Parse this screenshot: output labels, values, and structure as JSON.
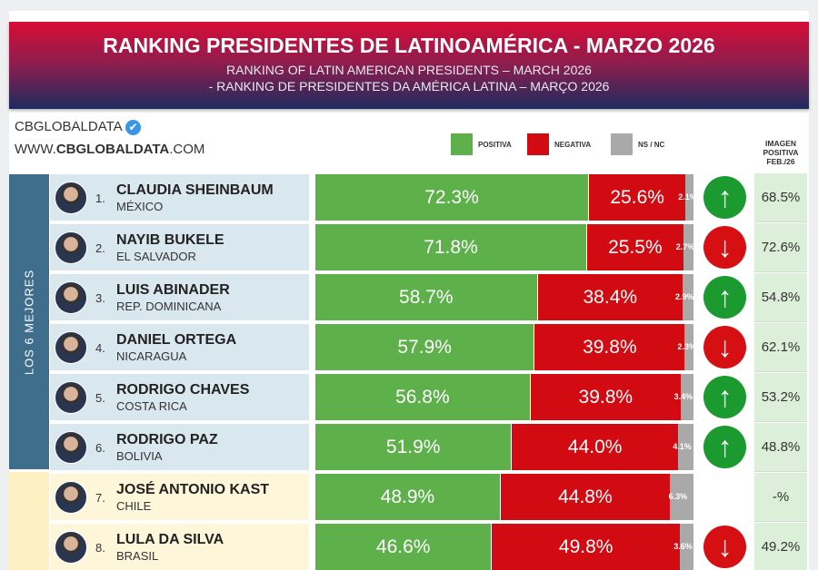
{
  "header": {
    "title": "RANKING PRESIDENTES DE LATINOAMÉRICA - MARZO 2026",
    "subtitle_en": "RANKING OF LATIN AMERICAN PRESIDENTS – MARCH 2026",
    "subtitle_pt": "- RANKING DE PRESIDENTES DA AMÉRICA LATINA – MARÇO 2026"
  },
  "brand": {
    "name": "CBGLOBALDATA",
    "verified_icon": "✔",
    "site_prefix": "WWW.",
    "site_bold": "CBGLOBALDATA",
    "site_suffix": ".COM"
  },
  "legend": {
    "positive": "POSITIVA",
    "negative": "NEGATIVA",
    "nsnc": "NS / NC"
  },
  "colors": {
    "positive": "#5db04a",
    "negative": "#d20a12",
    "nsnc": "#a9a9a9",
    "up": "#1b9a2f",
    "down": "#d50f12",
    "top_group": "#3f6d8c",
    "top_panel": "#d9e7ee",
    "rest_panel": "#fdf6d9",
    "feb_col": "#dcefd8"
  },
  "feb_header": "IMAGEN POSITIVA FEB./26",
  "group_label": "LOS 6 MEJORES",
  "chart_data": {
    "type": "bar",
    "stacked": true,
    "orientation": "horizontal",
    "series_names": [
      "POSITIVA",
      "NEGATIVA",
      "NS / NC"
    ],
    "rows": [
      {
        "rank": "1.",
        "name": "CLAUDIA SHEINBAUM",
        "country": "MÉXICO",
        "positive": 72.3,
        "negative": 25.6,
        "nsnc": 2.1,
        "trend": "up",
        "feb": "68.5%"
      },
      {
        "rank": "2.",
        "name": "NAYIB BUKELE",
        "country": "EL SALVADOR",
        "positive": 71.8,
        "negative": 25.5,
        "nsnc": 2.7,
        "trend": "down",
        "feb": "72.6%"
      },
      {
        "rank": "3.",
        "name": "LUIS ABINADER",
        "country": "REP. DOMINICANA",
        "positive": 58.7,
        "negative": 38.4,
        "nsnc": 2.9,
        "trend": "up",
        "feb": "54.8%"
      },
      {
        "rank": "4.",
        "name": "DANIEL ORTEGA",
        "country": "NICARAGUA",
        "positive": 57.9,
        "negative": 39.8,
        "nsnc": 2.3,
        "trend": "down",
        "feb": "62.1%"
      },
      {
        "rank": "5.",
        "name": "RODRIGO CHAVES",
        "country": "COSTA RICA",
        "positive": 56.8,
        "negative": 39.8,
        "nsnc": 3.4,
        "trend": "up",
        "feb": "53.2%"
      },
      {
        "rank": "6.",
        "name": "RODRIGO PAZ",
        "country": "BOLIVIA",
        "positive": 51.9,
        "negative": 44.0,
        "nsnc": 4.1,
        "trend": "up",
        "feb": "48.8%"
      },
      {
        "rank": "7.",
        "name": "JOSÉ ANTONIO KAST",
        "country": "CHILE",
        "positive": 48.9,
        "negative": 44.8,
        "nsnc": 6.3,
        "trend": "none",
        "feb": "-%"
      },
      {
        "rank": "8.",
        "name": "LULA DA SILVA",
        "country": "BRASIL",
        "positive": 46.6,
        "negative": 49.8,
        "nsnc": 3.6,
        "trend": "down",
        "feb": "49.2%"
      }
    ]
  }
}
